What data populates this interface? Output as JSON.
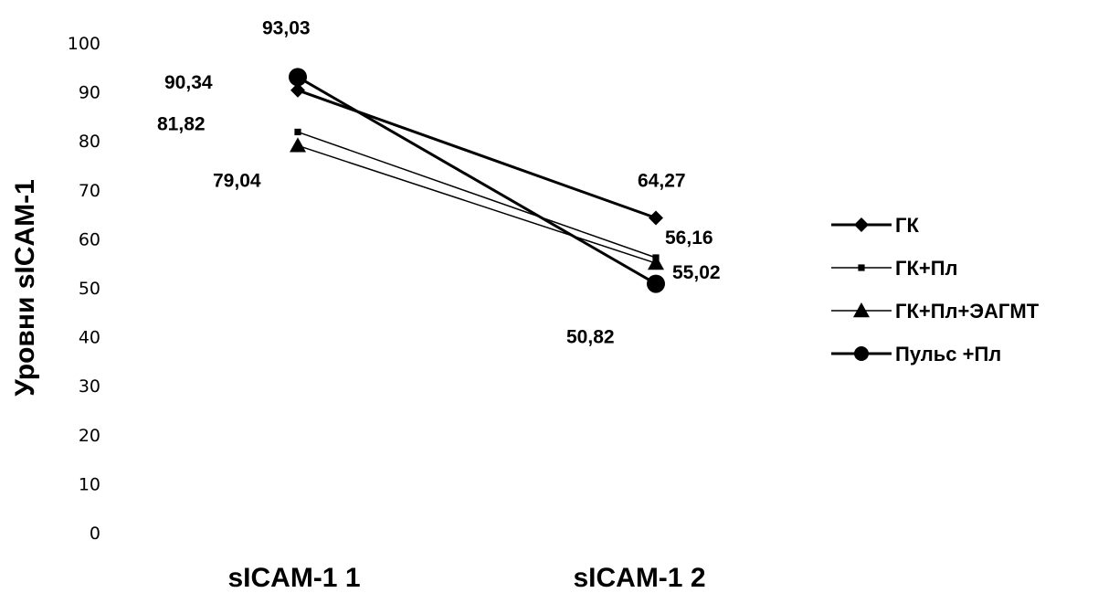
{
  "chart_data": {
    "type": "line",
    "title": "",
    "xlabel": "",
    "ylabel": "Уровни sICAM-1",
    "categories": [
      "sICAM-1 1",
      "sICAM-1 2"
    ],
    "ylim": [
      0,
      100
    ],
    "yticks": [
      "0",
      "10",
      "20",
      "30",
      "40",
      "50",
      "60",
      "70",
      "80",
      "90",
      "100"
    ],
    "grid": false,
    "legend": "right",
    "series": [
      {
        "name": "ГК",
        "marker": "diamond",
        "stroke": 3,
        "values": [
          90.34,
          64.27
        ],
        "labels": [
          "90,34",
          "64,27"
        ]
      },
      {
        "name": "ГК+Пл",
        "marker": "square",
        "stroke": 1.5,
        "values": [
          81.82,
          56.16
        ],
        "labels": [
          "81,82",
          "56,16"
        ]
      },
      {
        "name": "ГК+Пл+ЭАГМТ",
        "marker": "triangle",
        "stroke": 1.5,
        "values": [
          79.04,
          55.02
        ],
        "labels": [
          "79,04",
          "55,02"
        ]
      },
      {
        "name": "Пульс +Пл",
        "marker": "circle",
        "stroke": 3,
        "values": [
          93.03,
          50.82
        ],
        "labels": [
          "93,03",
          "50,82"
        ]
      }
    ]
  }
}
